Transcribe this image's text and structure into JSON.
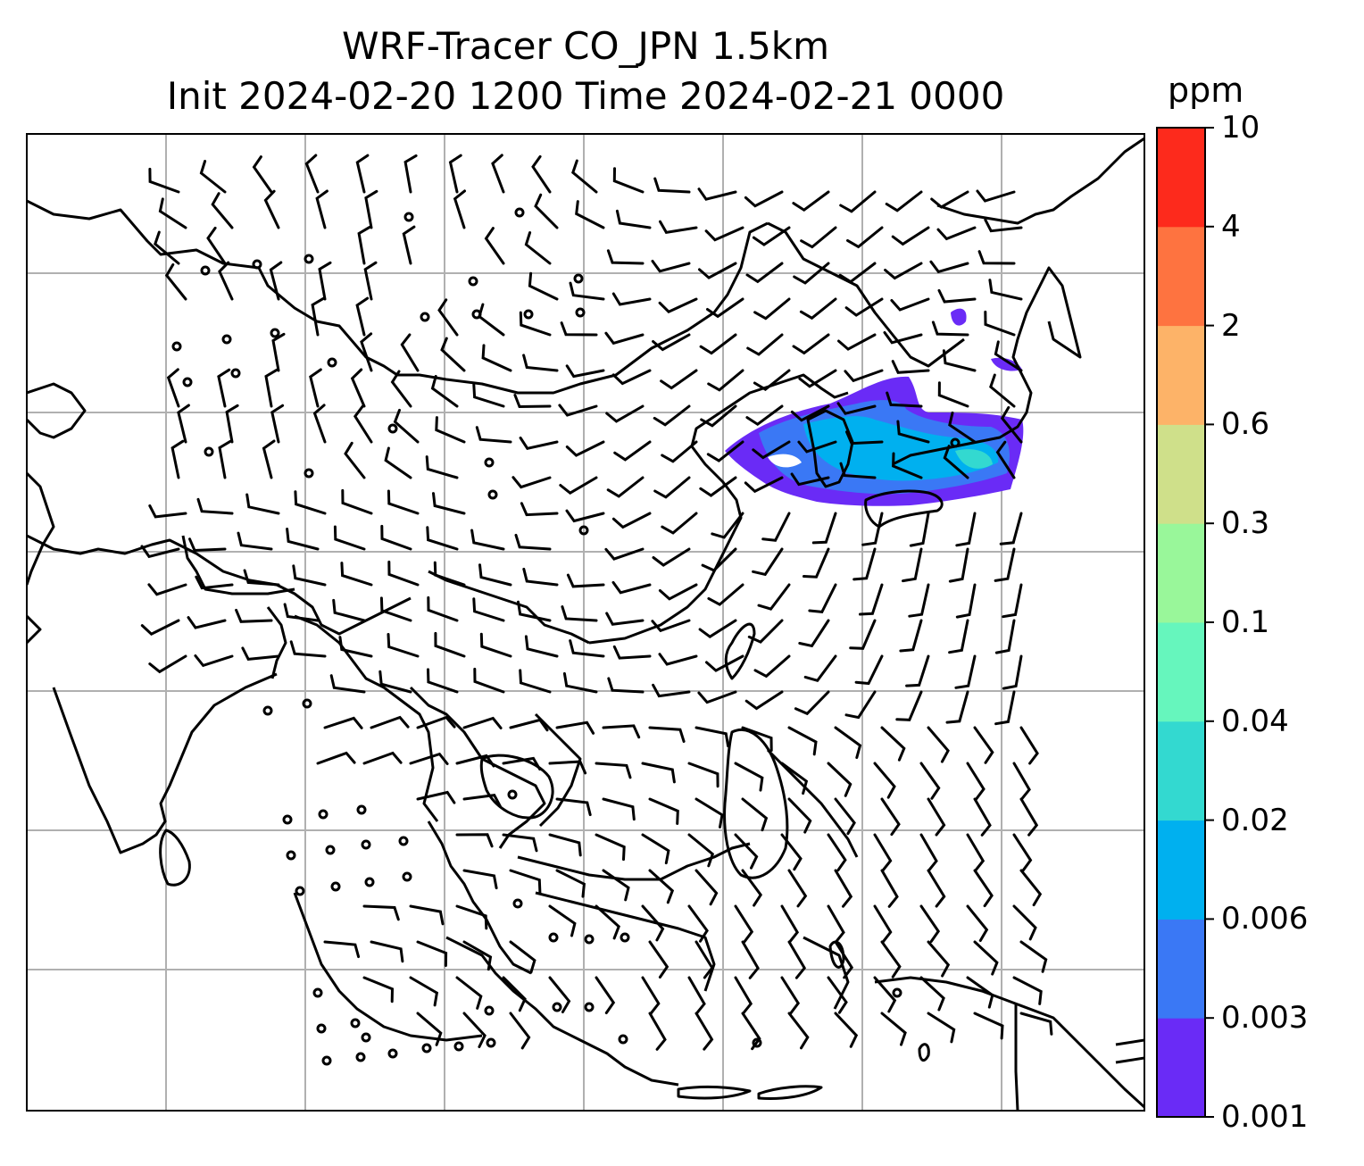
{
  "title": {
    "line1": "WRF-Tracer CO_JPN 1.5km",
    "line2": "Init 2024-02-20 1200 Time 2024-02-21 0000"
  },
  "colorbar": {
    "unit": "ppm",
    "levels": [
      "0.001",
      "0.003",
      "0.006",
      "0.02",
      "0.04",
      "0.1",
      "0.3",
      "0.6",
      "2",
      "4",
      "10"
    ],
    "colors": [
      "#6a2bf6",
      "#3a78f5",
      "#00b0ef",
      "#33d9d0",
      "#66f6bd",
      "#99f79a",
      "#cfe08a",
      "#fdb368",
      "#fe7340",
      "#fd2a1c"
    ]
  },
  "map": {
    "gridlines": true,
    "coastline_color": "#000000",
    "grid_color": "#b0b0b0",
    "wind_barbs": true
  }
}
